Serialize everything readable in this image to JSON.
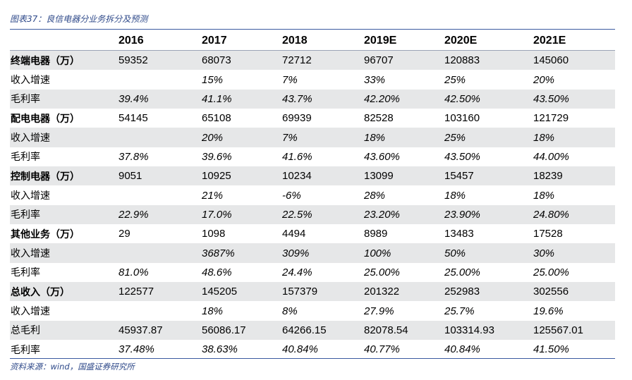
{
  "caption": "图表37：良信电器分业务拆分及预测",
  "source": "资料来源：wind，国盛证券研究所",
  "table": {
    "headers": [
      "",
      "2016",
      "2017",
      "2018",
      "2019E",
      "2020E",
      "2021E"
    ],
    "rows": [
      {
        "label": "终端电器（万）",
        "type": "cat",
        "cells": [
          "59352",
          "68073",
          "72712",
          "96707",
          "120883",
          "145060"
        ]
      },
      {
        "label": "收入增速",
        "type": "sub",
        "cells": [
          "",
          "15%",
          "7%",
          "33%",
          "25%",
          "20%"
        ]
      },
      {
        "label": "毛利率",
        "type": "sub",
        "cells": [
          "39.4%",
          "41.1%",
          "43.7%",
          "42.20%",
          "42.50%",
          "43.50%"
        ]
      },
      {
        "label": "配电电器（万）",
        "type": "cat",
        "cells": [
          "54145",
          "65108",
          "69939",
          "82528",
          "103160",
          "121729"
        ]
      },
      {
        "label": "收入增速",
        "type": "sub",
        "cells": [
          "",
          "20%",
          "7%",
          "18%",
          "25%",
          "18%"
        ]
      },
      {
        "label": "毛利率",
        "type": "sub",
        "cells": [
          "37.8%",
          "39.6%",
          "41.6%",
          "43.60%",
          "43.50%",
          "44.00%"
        ]
      },
      {
        "label": "控制电器（万）",
        "type": "cat",
        "cells": [
          "9051",
          "10925",
          "10234",
          "13099",
          "15457",
          "18239"
        ]
      },
      {
        "label": "收入增速",
        "type": "sub",
        "cells": [
          "",
          "21%",
          "-6%",
          "28%",
          "18%",
          "18%"
        ]
      },
      {
        "label": "毛利率",
        "type": "sub",
        "cells": [
          "22.9%",
          "17.0%",
          "22.5%",
          "23.20%",
          "23.90%",
          "24.80%"
        ]
      },
      {
        "label": "其他业务（万）",
        "type": "cat",
        "cells": [
          "29",
          "1098",
          "4494",
          "8989",
          "13483",
          "17528"
        ]
      },
      {
        "label": "收入增速",
        "type": "sub",
        "cells": [
          "",
          "3687%",
          "309%",
          "100%",
          "50%",
          "30%"
        ]
      },
      {
        "label": "毛利率",
        "type": "sub",
        "cells": [
          "81.0%",
          "48.6%",
          "24.4%",
          "25.00%",
          "25.00%",
          "25.00%"
        ]
      },
      {
        "label": "总收入（万）",
        "type": "cat",
        "cells": [
          "122577",
          "145205",
          "157379",
          "201322",
          "252983",
          "302556"
        ]
      },
      {
        "label": "收入增速",
        "type": "sub",
        "cells": [
          "",
          "18%",
          "8%",
          "27.9%",
          "25.7%",
          "19.6%"
        ]
      },
      {
        "label": "总毛利",
        "type": "plain",
        "cells": [
          "45937.87",
          "56086.17",
          "64266.15",
          "82078.54",
          "103314.93",
          "125567.01"
        ]
      },
      {
        "label": "毛利率",
        "type": "sub",
        "cells": [
          "37.48%",
          "38.63%",
          "40.84%",
          "40.77%",
          "40.84%",
          "41.50%"
        ]
      }
    ]
  },
  "colors": {
    "accent": "#3b5aa0",
    "caption_text": "#2f4a8a",
    "row_shade": "#e6e7e8"
  }
}
